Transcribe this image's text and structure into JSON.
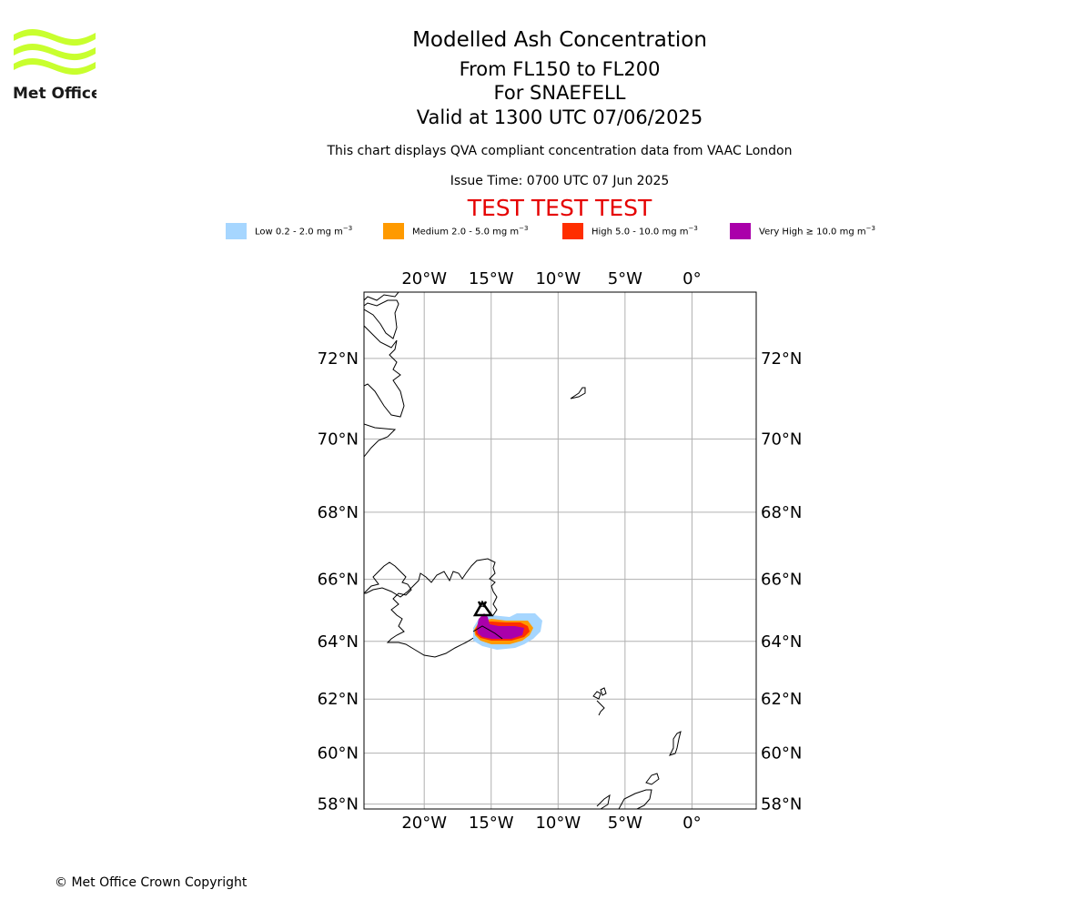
{
  "logo": {
    "text": "Met Office",
    "accent": "#c8ff2e"
  },
  "title": {
    "line1": "Modelled Ash Concentration",
    "line2": "From FL150 to FL200",
    "line3": "For SNAEFELL",
    "line4": "Valid at 1300 UTC 07/06/2025"
  },
  "subtitle": "This chart displays QVA compliant concentration data from VAAC London",
  "issue_time": "Issue Time: 0700 UTC 07 Jun 2025",
  "test_banner": "TEST TEST TEST",
  "legend": [
    {
      "label": "Low 0.2 - 2.0 mg m",
      "color": "#a6d6ff"
    },
    {
      "label": "Medium 2.0 - 5.0 mg m",
      "color": "#ff9a00"
    },
    {
      "label": "High 5.0 - 10.0 mg m",
      "color": "#ff2e00"
    },
    {
      "label": "Very High ≥ 10.0 mg m",
      "color": "#aa00aa"
    }
  ],
  "legend_unit_exponent": "−3",
  "map": {
    "projection": "mercator",
    "lon_range": [
      -24.5,
      4.8
    ],
    "lat_range": [
      57.8,
      73.5
    ],
    "grid": true,
    "lon_ticks": [
      {
        "value": -20,
        "label": "20°W"
      },
      {
        "value": -15,
        "label": "15°W"
      },
      {
        "value": -10,
        "label": "10°W"
      },
      {
        "value": -5,
        "label": "5°W"
      },
      {
        "value": 0,
        "label": "0°"
      }
    ],
    "lat_ticks": [
      {
        "value": 72,
        "label": "72°N"
      },
      {
        "value": 70,
        "label": "70°N"
      },
      {
        "value": 68,
        "label": "68°N"
      },
      {
        "value": 66,
        "label": "66°N"
      },
      {
        "value": 64,
        "label": "64°N"
      },
      {
        "value": 62,
        "label": "62°N"
      },
      {
        "value": 60,
        "label": "60°N"
      },
      {
        "value": 58,
        "label": "58°N"
      }
    ],
    "volcano": {
      "name": "SNAEFELL",
      "lat": 64.8,
      "lon": -15.6
    },
    "ash_levels": [
      "low",
      "medium",
      "high",
      "very-high"
    ]
  },
  "copyright": "© Met Office Crown Copyright"
}
